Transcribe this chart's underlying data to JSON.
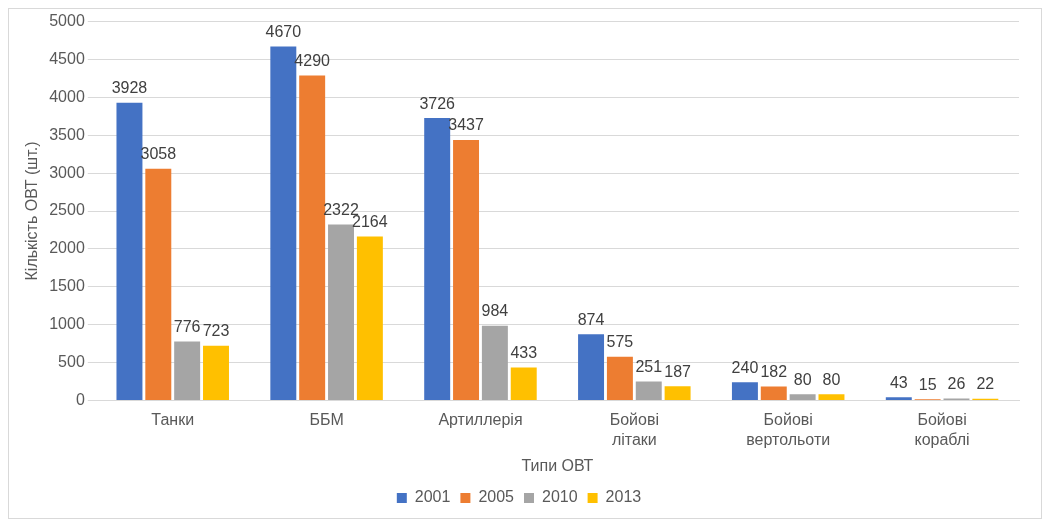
{
  "chart_data": {
    "type": "bar",
    "xlabel": "Типи ОВТ",
    "ylabel": "Кількість ОВТ (шт.)",
    "categories": [
      "Танки",
      "ББМ",
      "Артиллерія",
      "Бойові літаки",
      "Бойові вертольоти",
      "Бойові кораблі"
    ],
    "series": [
      {
        "name": "2001",
        "color": "#4472c4",
        "values": [
          3928,
          4670,
          3726,
          874,
          240,
          43
        ]
      },
      {
        "name": "2005",
        "color": "#ed7d31",
        "values": [
          3058,
          4290,
          3437,
          575,
          182,
          15
        ]
      },
      {
        "name": "2010",
        "color": "#a5a5a5",
        "values": [
          776,
          2322,
          984,
          251,
          80,
          26
        ]
      },
      {
        "name": "2013",
        "color": "#ffc000",
        "values": [
          723,
          2164,
          433,
          187,
          80,
          22
        ]
      }
    ],
    "ylim": [
      0,
      5000
    ],
    "yticks": [
      0,
      500,
      1000,
      1500,
      2000,
      2500,
      3000,
      3500,
      4000,
      4500,
      5000
    ],
    "grid": "y",
    "legend": "bottom",
    "data_labels": true
  }
}
